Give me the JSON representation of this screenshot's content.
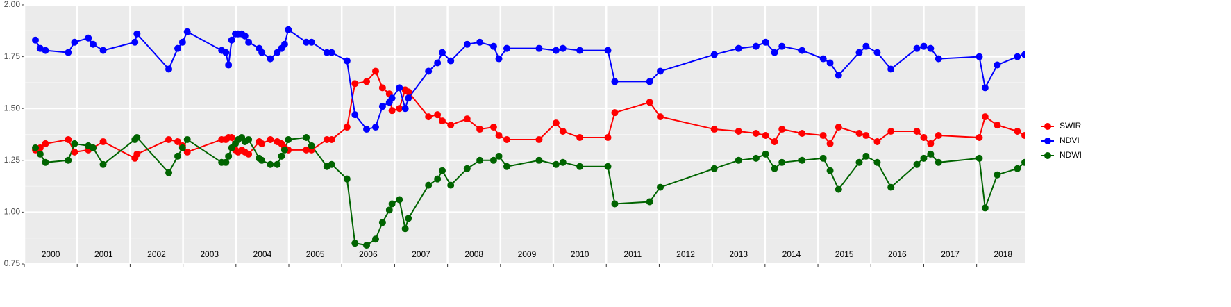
{
  "chart_data": {
    "type": "line",
    "x": [
      2000.21,
      2000.3,
      2000.4,
      2000.83,
      2000.95,
      2001.21,
      2001.3,
      2001.49,
      2002.09,
      2002.13,
      2002.73,
      2002.9,
      2002.99,
      2003.08,
      2003.73,
      2003.81,
      2003.86,
      2003.92,
      2003.99,
      2004.04,
      2004.11,
      2004.17,
      2004.24,
      2004.44,
      2004.49,
      2004.65,
      2004.78,
      2004.86,
      2004.92,
      2004.99,
      2005.33,
      2005.43,
      2005.72,
      2005.81,
      2006.1,
      2006.25,
      2006.47,
      2006.64,
      2006.77,
      2006.9,
      2006.95,
      2007.09,
      2007.2,
      2007.26,
      2007.64,
      2007.81,
      2007.9,
      2008.06,
      2008.37,
      2008.61,
      2008.87,
      2008.97,
      2009.12,
      2009.73,
      2010.05,
      2010.18,
      2010.5,
      2011.03,
      2011.16,
      2011.82,
      2012.02,
      2013.04,
      2013.5,
      2013.83,
      2014.01,
      2014.18,
      2014.32,
      2014.7,
      2015.1,
      2015.23,
      2015.39,
      2015.78,
      2015.91,
      2016.12,
      2016.38,
      2016.87,
      2017.0,
      2017.13,
      2017.28,
      2018.05,
      2018.16,
      2018.39,
      2018.77,
      2018.91
    ],
    "series": [
      {
        "name": "SWIR",
        "color": "#ff0000",
        "values": [
          1.3,
          1.31,
          1.33,
          1.35,
          1.29,
          1.3,
          1.31,
          1.34,
          1.26,
          1.28,
          1.35,
          1.34,
          1.32,
          1.29,
          1.35,
          1.35,
          1.36,
          1.36,
          1.3,
          1.29,
          1.3,
          1.29,
          1.28,
          1.34,
          1.33,
          1.35,
          1.34,
          1.33,
          1.31,
          1.3,
          1.3,
          1.3,
          1.35,
          1.35,
          1.41,
          1.62,
          1.63,
          1.68,
          1.6,
          1.57,
          1.49,
          1.5,
          1.59,
          1.58,
          1.46,
          1.47,
          1.44,
          1.42,
          1.45,
          1.4,
          1.41,
          1.37,
          1.35,
          1.35,
          1.43,
          1.39,
          1.36,
          1.36,
          1.48,
          1.53,
          1.46,
          1.4,
          1.39,
          1.38,
          1.37,
          1.34,
          1.4,
          1.38,
          1.37,
          1.33,
          1.41,
          1.38,
          1.37,
          1.34,
          1.39,
          1.39,
          1.36,
          1.33,
          1.37,
          1.36,
          1.46,
          1.42,
          1.39,
          1.37
        ]
      },
      {
        "name": "NDVI",
        "color": "#0000ff",
        "values": [
          1.83,
          1.79,
          1.78,
          1.77,
          1.82,
          1.84,
          1.81,
          1.78,
          1.82,
          1.86,
          1.69,
          1.79,
          1.82,
          1.87,
          1.78,
          1.77,
          1.71,
          1.83,
          1.86,
          1.86,
          1.86,
          1.85,
          1.82,
          1.79,
          1.77,
          1.74,
          1.77,
          1.79,
          1.81,
          1.88,
          1.82,
          1.82,
          1.77,
          1.77,
          1.73,
          1.47,
          1.4,
          1.41,
          1.51,
          1.53,
          1.55,
          1.6,
          1.5,
          1.55,
          1.68,
          1.72,
          1.77,
          1.73,
          1.81,
          1.82,
          1.8,
          1.74,
          1.79,
          1.79,
          1.78,
          1.79,
          1.78,
          1.78,
          1.63,
          1.63,
          1.68,
          1.76,
          1.79,
          1.8,
          1.82,
          1.77,
          1.8,
          1.78,
          1.74,
          1.72,
          1.66,
          1.77,
          1.8,
          1.77,
          1.69,
          1.79,
          1.8,
          1.79,
          1.74,
          1.75,
          1.6,
          1.71,
          1.75,
          1.76
        ]
      },
      {
        "name": "NDWI",
        "color": "#006400",
        "values": [
          1.31,
          1.28,
          1.24,
          1.25,
          1.33,
          1.32,
          1.31,
          1.23,
          1.35,
          1.36,
          1.19,
          1.27,
          1.31,
          1.35,
          1.24,
          1.24,
          1.27,
          1.31,
          1.33,
          1.35,
          1.36,
          1.34,
          1.35,
          1.26,
          1.25,
          1.23,
          1.23,
          1.27,
          1.3,
          1.35,
          1.36,
          1.32,
          1.22,
          1.23,
          1.16,
          0.85,
          0.84,
          0.87,
          0.95,
          1.01,
          1.04,
          1.06,
          0.92,
          0.97,
          1.13,
          1.16,
          1.2,
          1.13,
          1.21,
          1.25,
          1.25,
          1.27,
          1.22,
          1.25,
          1.23,
          1.24,
          1.22,
          1.22,
          1.04,
          1.05,
          1.12,
          1.21,
          1.25,
          1.26,
          1.28,
          1.21,
          1.24,
          1.25,
          1.26,
          1.2,
          1.11,
          1.24,
          1.27,
          1.24,
          1.12,
          1.23,
          1.26,
          1.28,
          1.24,
          1.26,
          1.02,
          1.18,
          1.21,
          1.24
        ]
      }
    ],
    "xlim": [
      2000.0,
      2018.91
    ],
    "xticks": [
      2000,
      2001,
      2002,
      2003,
      2004,
      2005,
      2006,
      2007,
      2008,
      2009,
      2010,
      2011,
      2012,
      2013,
      2014,
      2015,
      2016,
      2017,
      2018
    ],
    "ylim": [
      0.75,
      2.0
    ],
    "yticks": [
      {
        "value": 0.75,
        "label": "0.75"
      },
      {
        "value": 1,
        "label": "1.00"
      },
      {
        "value": 1.25,
        "label": "1.25"
      },
      {
        "value": 1.5,
        "label": "1.50"
      },
      {
        "value": 1.75,
        "label": "1.75"
      },
      {
        "value": 2,
        "label": "2.00"
      }
    ],
    "grid": true
  }
}
